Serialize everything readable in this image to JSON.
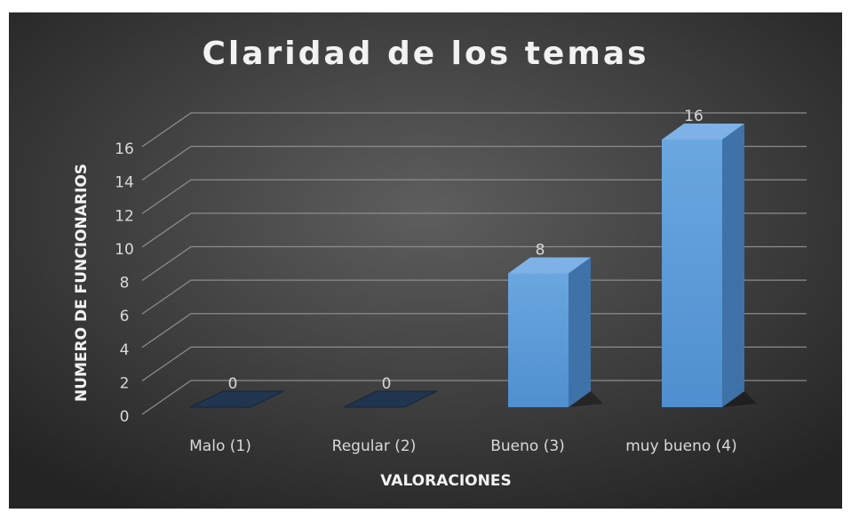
{
  "chart_data": {
    "type": "bar3d",
    "title": "Claridad de los temas",
    "categories": [
      "Malo (1)",
      "Regular (2)",
      "Bueno (3)",
      "muy bueno (4)"
    ],
    "values": [
      0,
      0,
      8,
      16
    ],
    "color": "#5b9bd5",
    "ylabel": "NUMERO DE FUNCIONARIOS",
    "xlabel": "VALORACIONES",
    "ylim": [
      0,
      16
    ],
    "yticks": [
      0,
      2,
      4,
      6,
      8,
      10,
      12,
      14,
      16
    ],
    "grid": true
  }
}
